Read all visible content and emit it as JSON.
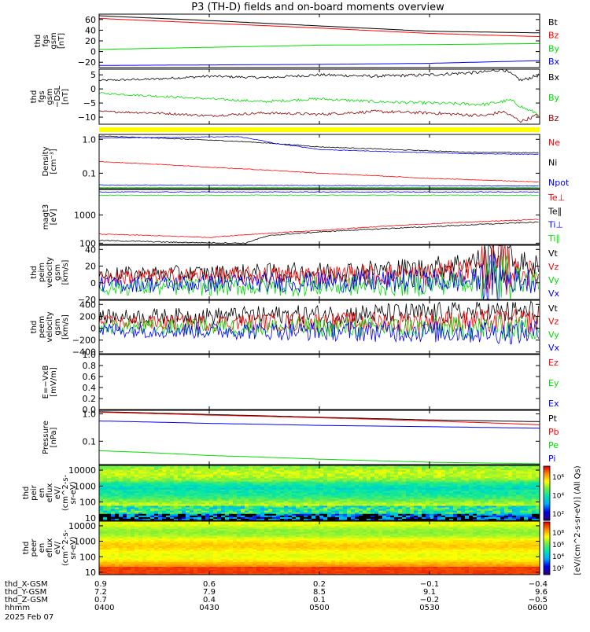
{
  "title": "P3 (TH-D) fields and on-board moments overview",
  "colors": {
    "black": "#000000",
    "red": "#ff0000",
    "green": "#00dd00",
    "blue": "#0000ff",
    "darkred": "#8b0000",
    "yellow": "#ffff00"
  },
  "chart_data": [
    {
      "id": "fgs_gsm",
      "type": "line",
      "ylabel": [
        "thd",
        "fgs",
        "gsm",
        "[nT]"
      ],
      "yscale": "linear",
      "ylim": [
        -30,
        70
      ],
      "yticks": [
        {
          "v": 60,
          "t": "60"
        },
        {
          "v": 40,
          "t": "40"
        },
        {
          "v": 20,
          "t": "20"
        },
        {
          "v": 0,
          "t": "0"
        },
        {
          "v": -20,
          "t": "−20"
        }
      ],
      "series": [
        {
          "name": "Bt",
          "color": "#000000",
          "x": [
            0,
            30,
            60,
            90,
            120
          ],
          "y": [
            67,
            58,
            48,
            38,
            35
          ]
        },
        {
          "name": "Bz",
          "color": "#ff0000",
          "x": [
            0,
            30,
            60,
            90,
            120
          ],
          "y": [
            62,
            53,
            44,
            34,
            28
          ]
        },
        {
          "name": "By",
          "color": "#00dd00",
          "x": [
            0,
            30,
            60,
            90,
            120
          ],
          "y": [
            4,
            8,
            12,
            13,
            15
          ]
        },
        {
          "name": "Bx",
          "color": "#0000ff",
          "x": [
            0,
            30,
            60,
            90,
            120
          ],
          "y": [
            -26,
            -25,
            -24,
            -22,
            -17
          ]
        }
      ]
    },
    {
      "id": "fgs_gsm_dsl",
      "type": "line",
      "ylabel": [
        "thd",
        "fgs",
        "gsm",
        "−DSL",
        "[nT]"
      ],
      "yscale": "linear",
      "ylim": [
        -12.5,
        7
      ],
      "yticks": [
        {
          "v": 5,
          "t": "5"
        },
        {
          "v": 0,
          "t": "0"
        },
        {
          "v": -5,
          "t": "−5"
        },
        {
          "v": -10,
          "t": "−10"
        }
      ],
      "series": [
        {
          "name": "Bx",
          "color": "#000000",
          "x": [
            0,
            15,
            30,
            45,
            60,
            75,
            90,
            105,
            110,
            115,
            120
          ],
          "y": [
            3,
            3.5,
            4.5,
            4,
            5,
            4.5,
            5,
            6,
            7,
            3,
            5
          ]
        },
        {
          "name": "By",
          "color": "#00dd00",
          "x": [
            0,
            15,
            30,
            45,
            60,
            75,
            90,
            105,
            112,
            116,
            120
          ],
          "y": [
            -1.5,
            -2.5,
            -3.5,
            -4.5,
            -3.5,
            -4.5,
            -5,
            -5.5,
            -4,
            -7,
            -9
          ]
        },
        {
          "name": "Bz",
          "color": "#8b0000",
          "x": [
            0,
            15,
            30,
            45,
            60,
            75,
            90,
            105,
            110,
            115,
            120
          ],
          "y": [
            -8,
            -8.5,
            -9.5,
            -8.5,
            -9,
            -8,
            -8.5,
            -9.5,
            -8,
            -11.5,
            -9
          ]
        }
      ]
    },
    {
      "id": "density",
      "type": "line",
      "ylabel": [
        "Density",
        "[cm⁻³]"
      ],
      "yscale": "log",
      "ylim": [
        0.035,
        1.4
      ],
      "yticks": [
        {
          "v": 1.0,
          "t": "1.0"
        },
        {
          "v": 0.1,
          "t": "0.1"
        }
      ],
      "series": [
        {
          "name": "Ne",
          "color": "#ff0000",
          "x": [
            0,
            30,
            60,
            90,
            120
          ],
          "y": [
            0.22,
            0.15,
            0.1,
            0.07,
            0.055
          ]
        },
        {
          "name": "Ni",
          "color": "#000000",
          "x": [
            0,
            20,
            40,
            60,
            80,
            100,
            120
          ],
          "y": [
            1.25,
            1.05,
            0.85,
            0.6,
            0.5,
            0.42,
            0.4
          ]
        },
        {
          "name": "Npot",
          "color": "#0000ff",
          "x": [
            0,
            20,
            38,
            48,
            60,
            80,
            100,
            120
          ],
          "y": [
            1.1,
            1.15,
            1.2,
            0.75,
            0.5,
            0.43,
            0.38,
            0.36
          ]
        },
        {
          "name": "",
          "color": "#0000ff",
          "x": [
            0,
            120
          ],
          "y": [
            0.045,
            0.042
          ]
        },
        {
          "name": "",
          "color": "#00dd00",
          "x": [
            0,
            120
          ],
          "y": [
            0.038,
            0.038
          ]
        }
      ]
    },
    {
      "id": "moments_temp",
      "type": "line",
      "ylabel": [
        "magt3",
        "[eV]"
      ],
      "yscale": "log",
      "ylim": [
        90,
        8000
      ],
      "yticks": [
        {
          "v": 1000,
          "t": "1000"
        },
        {
          "v": 100,
          "t": "100"
        }
      ],
      "series": [
        {
          "name": "Te⊥",
          "color": "#ff0000",
          "x": [
            0,
            30,
            60,
            90,
            120
          ],
          "y": [
            210,
            160,
            280,
            480,
            700
          ]
        },
        {
          "name": "Te∥",
          "color": "#000000",
          "x": [
            0,
            20,
            40,
            47,
            60,
            90,
            120
          ],
          "y": [
            125,
            108,
            100,
            190,
            250,
            380,
            560
          ]
        },
        {
          "name": "Ti⊥",
          "color": "#0000ff",
          "x": [
            0,
            120
          ],
          "y": [
            6500,
            6500
          ]
        },
        {
          "name": "Ti∥",
          "color": "#00dd00",
          "x": [
            0,
            120
          ],
          "y": [
            5000,
            5000
          ]
        }
      ]
    },
    {
      "id": "peim_velocity",
      "type": "line",
      "ylabel": [
        "thd",
        "peim",
        "velocity",
        "gsm",
        "[km/s]"
      ],
      "yscale": "linear",
      "ylim": [
        -20,
        45
      ],
      "yticks": [
        {
          "v": 40,
          "t": "40"
        },
        {
          "v": 20,
          "t": "20"
        },
        {
          "v": 0,
          "t": "0"
        },
        {
          "v": -20,
          "t": "−20"
        }
      ],
      "series": [
        {
          "name": "Vt",
          "color": "#000000",
          "x": [
            0,
            30,
            60,
            90,
            108,
            120
          ],
          "y": [
            10,
            11,
            13,
            17,
            30,
            18
          ]
        },
        {
          "name": "Vz",
          "color": "#ff0000",
          "x": [
            0,
            30,
            60,
            90,
            108,
            120
          ],
          "y": [
            7,
            8,
            9,
            10,
            20,
            9
          ]
        },
        {
          "name": "Vy",
          "color": "#00dd00",
          "x": [
            0,
            30,
            60,
            90,
            108,
            120
          ],
          "y": [
            -6,
            -5,
            -4,
            -2,
            6,
            2
          ]
        },
        {
          "name": "Vx",
          "color": "#0000ff",
          "x": [
            0,
            30,
            60,
            90,
            108,
            120
          ],
          "y": [
            -2,
            -1,
            1,
            2,
            3,
            3
          ]
        }
      ]
    },
    {
      "id": "peem_velocity",
      "type": "line",
      "ylabel": [
        "thd",
        "peem",
        "velocity",
        "gsm",
        "[km/s]"
      ],
      "yscale": "linear",
      "ylim": [
        -430,
        470
      ],
      "yticks": [
        {
          "v": 400,
          "t": "400"
        },
        {
          "v": 200,
          "t": "200"
        },
        {
          "v": 0,
          "t": "0"
        },
        {
          "v": -200,
          "t": "−200"
        },
        {
          "v": -400,
          "t": "−400"
        }
      ],
      "series": [
        {
          "name": "Vt",
          "color": "#000000",
          "x": [
            0,
            30,
            60,
            90,
            120
          ],
          "y": [
            190,
            210,
            230,
            250,
            270
          ]
        },
        {
          "name": "Vz",
          "color": "#ff0000",
          "x": [
            0,
            30,
            60,
            90,
            120
          ],
          "y": [
            90,
            90,
            100,
            110,
            120
          ]
        },
        {
          "name": "Vy",
          "color": "#00dd00",
          "x": [
            0,
            30,
            60,
            90,
            120
          ],
          "y": [
            20,
            15,
            10,
            5,
            0
          ]
        },
        {
          "name": "Vx",
          "color": "#0000ff",
          "x": [
            0,
            30,
            60,
            90,
            120
          ],
          "y": [
            -30,
            -40,
            -50,
            -60,
            -70
          ]
        }
      ]
    },
    {
      "id": "efield",
      "type": "line",
      "ylabel": [
        "E=−VxB",
        "[mV/m]"
      ],
      "yscale": "linear",
      "ylim": [
        0,
        1
      ],
      "yticks": [
        {
          "v": 1.0,
          "t": "1.0"
        },
        {
          "v": 0.8,
          "t": "0.8"
        },
        {
          "v": 0.6,
          "t": "0.6"
        },
        {
          "v": 0.4,
          "t": "0.4"
        },
        {
          "v": 0.2,
          "t": "0.2"
        },
        {
          "v": 0.0,
          "t": "0.0"
        }
      ],
      "series": [
        {
          "name": "Ez",
          "color": "#ff0000",
          "x": [],
          "y": []
        },
        {
          "name": "Ey",
          "color": "#00dd00",
          "x": [],
          "y": []
        },
        {
          "name": "Ex",
          "color": "#0000ff",
          "x": [],
          "y": []
        }
      ]
    },
    {
      "id": "pressure",
      "type": "line",
      "ylabel": [
        "Pressure",
        "[nPa]"
      ],
      "yscale": "log",
      "ylim": [
        0.014,
        1.35
      ],
      "yticks": [
        {
          "v": 1.0,
          "t": "1.0"
        },
        {
          "v": 0.1,
          "t": "0.1"
        }
      ],
      "series": [
        {
          "name": "Pt",
          "color": "#000000",
          "x": [
            0,
            30,
            60,
            90,
            120
          ],
          "y": [
            1.2,
            0.95,
            0.75,
            0.6,
            0.52
          ]
        },
        {
          "name": "Pb",
          "color": "#ff0000",
          "x": [
            0,
            30,
            60,
            90,
            120
          ],
          "y": [
            1.15,
            0.9,
            0.72,
            0.55,
            0.4
          ]
        },
        {
          "name": "Pe",
          "color": "#00dd00",
          "x": [
            0,
            30,
            60,
            90,
            120
          ],
          "y": [
            0.045,
            0.03,
            0.022,
            0.017,
            0.015
          ]
        },
        {
          "name": "Pi",
          "color": "#0000ff",
          "x": [
            0,
            30,
            60,
            90,
            120
          ],
          "y": [
            0.55,
            0.45,
            0.38,
            0.34,
            0.3
          ]
        }
      ]
    },
    {
      "id": "peir_en_eflux",
      "type": "heatmap",
      "ylabel": [
        "thd",
        "peir",
        "en",
        "eflux",
        "eV/",
        "(cm^2-s-",
        "sr-eV)"
      ],
      "yscale": "log",
      "ylim": [
        7,
        20000
      ],
      "yticks": [
        {
          "v": 10000,
          "t": "10000"
        },
        {
          "v": 1000,
          "t": "1000"
        },
        {
          "v": 100,
          "t": "100"
        },
        {
          "v": 10,
          "t": "10"
        }
      ]
    },
    {
      "id": "peer_en_eflux",
      "type": "heatmap",
      "ylabel": [
        "thd",
        "peer",
        "en",
        "eflux",
        "eV/",
        "(cm^2-s-",
        "sr-eV)"
      ],
      "yscale": "log",
      "ylim": [
        7,
        20000
      ],
      "yticks": [
        {
          "v": 10000,
          "t": "10000"
        },
        {
          "v": 1000,
          "t": "1000"
        },
        {
          "v": 100,
          "t": "100"
        },
        {
          "v": 10,
          "t": "10"
        }
      ]
    }
  ],
  "colorbar": {
    "label": "[eV/(cm^2-s-sr-eV)] (All Qs)",
    "upper_ticks": [
      "10⁶",
      "10⁴",
      "10²"
    ],
    "lower_ticks": [
      "10⁸",
      "10⁶",
      "10⁴",
      "10²"
    ]
  },
  "xaxis": {
    "range_minutes": [
      0,
      120
    ],
    "tick_minutes": [
      0,
      30,
      60,
      90,
      120
    ],
    "rows": [
      {
        "label": "thd_X-GSM",
        "values": [
          "0.9",
          "0.6",
          "0.2",
          "−0.1",
          "−0.4"
        ]
      },
      {
        "label": "thd_Y-GSM",
        "values": [
          "7.2",
          "7.9",
          "8.5",
          "9.1",
          "9.6"
        ]
      },
      {
        "label": "thd_Z-GSM",
        "values": [
          "0.7",
          "0.4",
          "0.1",
          "−0.2",
          "−0.5"
        ]
      },
      {
        "label": "hhmm",
        "values": [
          "0400",
          "0430",
          "0500",
          "0530",
          "0600"
        ]
      }
    ],
    "date": "2025 Feb 07"
  }
}
